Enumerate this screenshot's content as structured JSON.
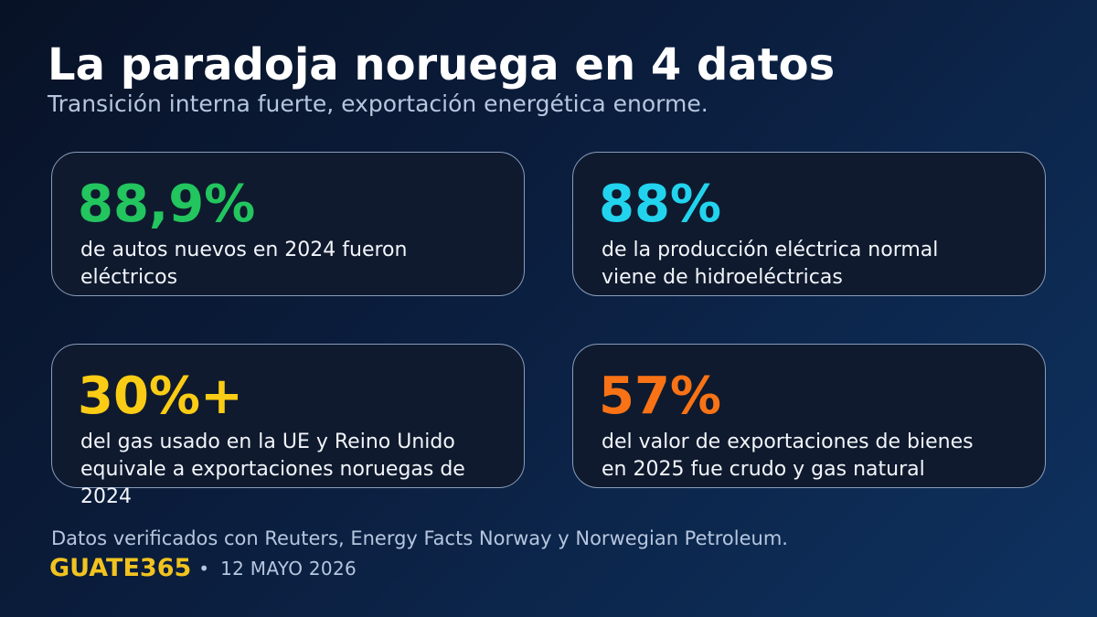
{
  "header": {
    "title": "La paradoja noruega en 4 datos",
    "subtitle": "Transición interna fuerte, exportación energética enorme."
  },
  "stats": [
    {
      "value": "88,9%",
      "description": "de autos nuevos en 2024 fueron eléctricos",
      "color": "#22c55e"
    },
    {
      "value": "88%",
      "description": "de la producción eléctrica normal viene de hidroeléctricas",
      "color": "#22d3ee"
    },
    {
      "value": "30%+",
      "description": "del gas usado en la UE y Reino Unido equivale a exportaciones noruegas de 2024",
      "color": "#facc15"
    },
    {
      "value": "57%",
      "description": "del valor de exportaciones de bienes en 2025 fue crudo y gas natural",
      "color": "#f97316"
    }
  ],
  "footer": {
    "source": "Datos verificados con Reuters, Energy Facts Norway y Norwegian Petroleum.",
    "brand": "GUATE365",
    "separator": "•",
    "date": "12 MAYO 2026"
  }
}
